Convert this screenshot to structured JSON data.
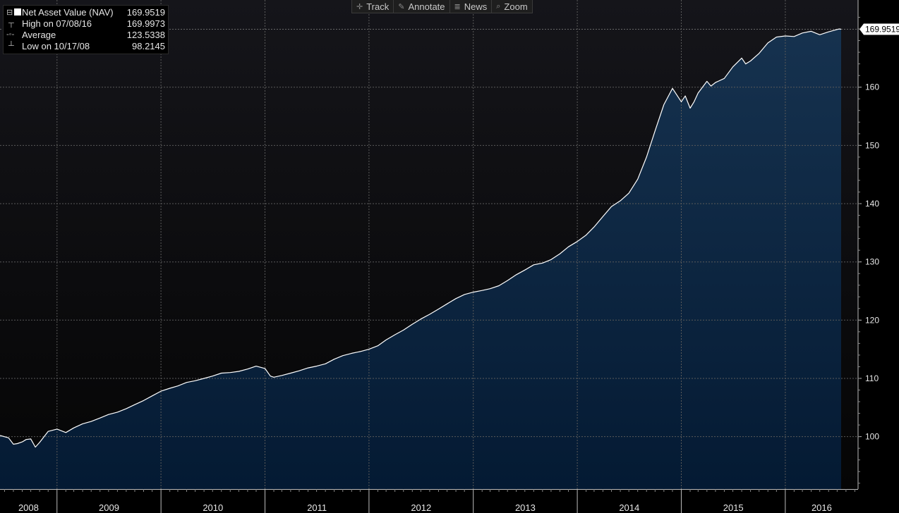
{
  "toolbar": {
    "track_label": "Track",
    "annotate_label": "Annotate",
    "news_label": "News",
    "zoom_label": "Zoom"
  },
  "legend": {
    "nav_label": "Net Asset Value (NAV)",
    "nav_value": "169.9519",
    "high_label": "High on 07/08/16",
    "high_value": "169.9973",
    "avg_label": "Average",
    "avg_value": "123.5338",
    "low_label": "Low on 10/17/08",
    "low_value": "98.2145"
  },
  "last_value_label": "169.9519",
  "colors": {
    "background": "#000000",
    "plot_top": "#15151a",
    "area_top": "#16324f",
    "area_bottom": "#041a33",
    "line": "#ffffff"
  },
  "chart_data": {
    "type": "area",
    "title": "",
    "xlabel": "",
    "ylabel": "",
    "x_axis": "date",
    "x_ticks": [
      "2008",
      "2009",
      "2010",
      "2011",
      "2012",
      "2013",
      "2014",
      "2015",
      "2016"
    ],
    "xlim": [
      "2008-06-15",
      "2016-07-15"
    ],
    "y_ticks": [
      100,
      110,
      120,
      130,
      140,
      150,
      160
    ],
    "ylim": [
      91,
      174
    ],
    "y_axis_side": "right",
    "grid": true,
    "series": [
      {
        "name": "Net Asset Value (NAV)",
        "points": [
          [
            "2008-06-15",
            100.2
          ],
          [
            "2008-07-15",
            99.8
          ],
          [
            "2008-08-01",
            98.7
          ],
          [
            "2008-08-15",
            98.8
          ],
          [
            "2008-09-01",
            99.1
          ],
          [
            "2008-09-15",
            99.5
          ],
          [
            "2008-10-01",
            99.6
          ],
          [
            "2008-10-17",
            98.2
          ],
          [
            "2008-11-01",
            99.0
          ],
          [
            "2008-12-01",
            100.9
          ],
          [
            "2009-01-01",
            101.3
          ],
          [
            "2009-02-01",
            100.7
          ],
          [
            "2009-03-01",
            101.5
          ],
          [
            "2009-04-01",
            102.2
          ],
          [
            "2009-05-01",
            102.6
          ],
          [
            "2009-06-01",
            103.2
          ],
          [
            "2009-07-01",
            103.8
          ],
          [
            "2009-08-01",
            104.2
          ],
          [
            "2009-09-01",
            104.8
          ],
          [
            "2009-10-01",
            105.5
          ],
          [
            "2009-11-01",
            106.2
          ],
          [
            "2009-12-01",
            107.0
          ],
          [
            "2010-01-01",
            107.8
          ],
          [
            "2010-02-01",
            108.3
          ],
          [
            "2010-03-01",
            108.7
          ],
          [
            "2010-04-01",
            109.3
          ],
          [
            "2010-05-01",
            109.6
          ],
          [
            "2010-06-01",
            110.0
          ],
          [
            "2010-07-01",
            110.4
          ],
          [
            "2010-08-01",
            110.9
          ],
          [
            "2010-09-01",
            111.0
          ],
          [
            "2010-10-01",
            111.2
          ],
          [
            "2010-11-01",
            111.6
          ],
          [
            "2010-12-01",
            112.1
          ],
          [
            "2011-01-01",
            111.7
          ],
          [
            "2011-01-20",
            110.4
          ],
          [
            "2011-02-01",
            110.2
          ],
          [
            "2011-03-01",
            110.5
          ],
          [
            "2011-04-01",
            110.9
          ],
          [
            "2011-05-01",
            111.3
          ],
          [
            "2011-06-01",
            111.8
          ],
          [
            "2011-07-01",
            112.1
          ],
          [
            "2011-08-01",
            112.5
          ],
          [
            "2011-09-01",
            113.3
          ],
          [
            "2011-10-01",
            113.9
          ],
          [
            "2011-11-01",
            114.3
          ],
          [
            "2011-12-01",
            114.6
          ],
          [
            "2012-01-01",
            115.0
          ],
          [
            "2012-02-01",
            115.6
          ],
          [
            "2012-03-01",
            116.6
          ],
          [
            "2012-04-01",
            117.5
          ],
          [
            "2012-05-01",
            118.3
          ],
          [
            "2012-06-01",
            119.3
          ],
          [
            "2012-07-01",
            120.2
          ],
          [
            "2012-08-01",
            121.0
          ],
          [
            "2012-09-01",
            121.9
          ],
          [
            "2012-10-01",
            122.8
          ],
          [
            "2012-11-01",
            123.7
          ],
          [
            "2012-12-01",
            124.4
          ],
          [
            "2013-01-01",
            124.8
          ],
          [
            "2013-02-01",
            125.1
          ],
          [
            "2013-03-01",
            125.4
          ],
          [
            "2013-04-01",
            125.9
          ],
          [
            "2013-05-01",
            126.8
          ],
          [
            "2013-06-01",
            127.8
          ],
          [
            "2013-07-01",
            128.6
          ],
          [
            "2013-08-01",
            129.5
          ],
          [
            "2013-09-01",
            129.8
          ],
          [
            "2013-10-01",
            130.4
          ],
          [
            "2013-11-01",
            131.4
          ],
          [
            "2013-12-01",
            132.6
          ],
          [
            "2014-01-01",
            133.5
          ],
          [
            "2014-02-01",
            134.6
          ],
          [
            "2014-03-01",
            136.0
          ],
          [
            "2014-04-01",
            137.8
          ],
          [
            "2014-05-01",
            139.5
          ],
          [
            "2014-06-01",
            140.5
          ],
          [
            "2014-07-01",
            141.8
          ],
          [
            "2014-08-01",
            144.2
          ],
          [
            "2014-09-01",
            148.0
          ],
          [
            "2014-10-01",
            152.5
          ],
          [
            "2014-11-01",
            157.0
          ],
          [
            "2014-12-01",
            159.8
          ],
          [
            "2015-01-01",
            157.5
          ],
          [
            "2015-01-15",
            158.5
          ],
          [
            "2015-02-01",
            156.4
          ],
          [
            "2015-02-15",
            157.5
          ],
          [
            "2015-03-01",
            159.0
          ],
          [
            "2015-04-01",
            161.0
          ],
          [
            "2015-04-15",
            160.2
          ],
          [
            "2015-05-01",
            160.8
          ],
          [
            "2015-06-01",
            161.5
          ],
          [
            "2015-07-01",
            163.5
          ],
          [
            "2015-08-01",
            165.0
          ],
          [
            "2015-08-15",
            164.0
          ],
          [
            "2015-09-01",
            164.5
          ],
          [
            "2015-10-01",
            165.8
          ],
          [
            "2015-11-01",
            167.6
          ],
          [
            "2015-12-01",
            168.6
          ],
          [
            "2016-01-01",
            168.8
          ],
          [
            "2016-02-01",
            168.7
          ],
          [
            "2016-03-01",
            169.3
          ],
          [
            "2016-04-01",
            169.6
          ],
          [
            "2016-05-01",
            169.0
          ],
          [
            "2016-06-01",
            169.5
          ],
          [
            "2016-07-08",
            170.0
          ],
          [
            "2016-07-15",
            169.95
          ]
        ]
      }
    ]
  }
}
